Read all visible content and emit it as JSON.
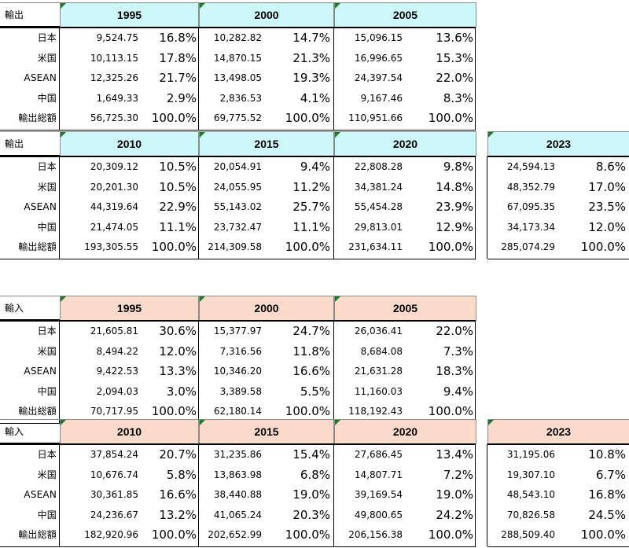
{
  "colors": {
    "export_header": "#cdf7f9",
    "import_header": "#fadbcb",
    "triangle": "#1d7a2a"
  },
  "row_labels": [
    "日本",
    "米国",
    "ASEAN",
    "中国",
    "輸出総額"
  ],
  "export": {
    "label": "輸出",
    "top": {
      "years": [
        "1995",
        "2000",
        "2005"
      ],
      "cols": [
        {
          "vals": [
            "9,524.75",
            "10,113.15",
            "12,325.26",
            "1,649.33",
            "56,725.30"
          ],
          "pcts": [
            "16.8%",
            "17.8%",
            "21.7%",
            "2.9%",
            "100.0%"
          ]
        },
        {
          "vals": [
            "10,282.82",
            "14,870.15",
            "13,498.05",
            "2,836.53",
            "69,775.52"
          ],
          "pcts": [
            "14.7%",
            "21.3%",
            "19.3%",
            "4.1%",
            "100.0%"
          ]
        },
        {
          "vals": [
            "15,096.15",
            "16,996.65",
            "24,397.54",
            "9,167.46",
            "110,951.66"
          ],
          "pcts": [
            "13.6%",
            "15.3%",
            "22.0%",
            "8.3%",
            "100.0%"
          ]
        }
      ]
    },
    "bottom": {
      "years": [
        "2010",
        "2015",
        "2020",
        "2023"
      ],
      "cols": [
        {
          "vals": [
            "20,309.12",
            "20,201.30",
            "44,319.64",
            "21,474.05",
            "193,305.55"
          ],
          "pcts": [
            "10.5%",
            "10.5%",
            "22.9%",
            "11.1%",
            "100.0%"
          ]
        },
        {
          "vals": [
            "20,054.91",
            "24,055.95",
            "55,143.02",
            "23,732.47",
            "214,309.58"
          ],
          "pcts": [
            "9.4%",
            "11.2%",
            "25.7%",
            "11.1%",
            "100.0%"
          ]
        },
        {
          "vals": [
            "22,808.28",
            "34,381.24",
            "55,454.28",
            "29,813.01",
            "231,634.11"
          ],
          "pcts": [
            "9.8%",
            "14.8%",
            "23.9%",
            "12.9%",
            "100.0%"
          ]
        },
        {
          "vals": [
            "24,594.13",
            "48,352.79",
            "67,095.35",
            "34,173.34",
            "285,074.29"
          ],
          "pcts": [
            "8.6%",
            "17.0%",
            "23.5%",
            "12.0%",
            "100.0%"
          ]
        }
      ]
    }
  },
  "import": {
    "label": "輸入",
    "top": {
      "years": [
        "1995",
        "2000",
        "2005"
      ],
      "cols": [
        {
          "vals": [
            "21,605.81",
            "8,494.22",
            "9,422.53",
            "2,094.03",
            "70,717.95"
          ],
          "pcts": [
            "30.6%",
            "12.0%",
            "13.3%",
            "3.0%",
            "100.0%"
          ]
        },
        {
          "vals": [
            "15,377.97",
            "7,316.56",
            "10,346.20",
            "3,389.58",
            "62,180.14"
          ],
          "pcts": [
            "24.7%",
            "11.8%",
            "16.6%",
            "5.5%",
            "100.0%"
          ]
        },
        {
          "vals": [
            "26,036.41",
            "8,684.08",
            "21,631.28",
            "11,160.03",
            "118,192.43"
          ],
          "pcts": [
            "22.0%",
            "7.3%",
            "18.3%",
            "9.4%",
            "100.0%"
          ]
        }
      ]
    },
    "bottom": {
      "years": [
        "2010",
        "2015",
        "2020",
        "2023"
      ],
      "cols": [
        {
          "vals": [
            "37,854.24",
            "10,676.74",
            "30,361.85",
            "24,236.67",
            "182,920.96"
          ],
          "pcts": [
            "20.7%",
            "5.8%",
            "16.6%",
            "13.2%",
            "100.0%"
          ]
        },
        {
          "vals": [
            "31,235.86",
            "13,863.98",
            "38,440.88",
            "41,065.24",
            "202,652.99"
          ],
          "pcts": [
            "15.4%",
            "6.8%",
            "19.0%",
            "20.3%",
            "100.0%"
          ]
        },
        {
          "vals": [
            "27,686.45",
            "14,807.71",
            "39,169.54",
            "49,800.65",
            "206,156.38"
          ],
          "pcts": [
            "13.4%",
            "7.2%",
            "19.0%",
            "24.2%",
            "100.0%"
          ]
        },
        {
          "vals": [
            "31,195.06",
            "19,307.10",
            "48,543.10",
            "70,826.58",
            "288,509.40"
          ],
          "pcts": [
            "10.8%",
            "6.7%",
            "16.8%",
            "24.5%",
            "100.0%"
          ]
        }
      ]
    }
  }
}
